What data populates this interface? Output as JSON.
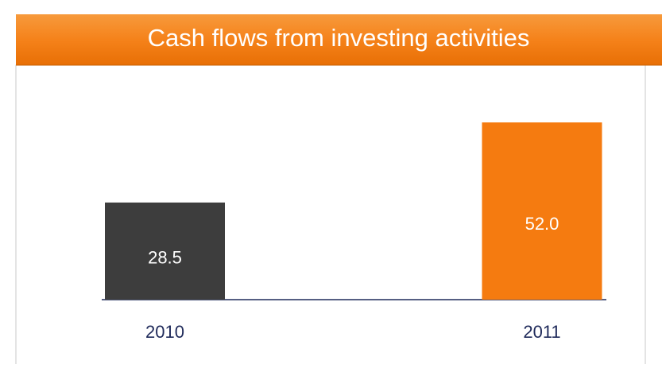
{
  "chart_data": {
    "type": "bar",
    "title": "Cash flows from investing activities",
    "categories": [
      "2010",
      "2011"
    ],
    "values": [
      28.5,
      52.0
    ],
    "value_labels": [
      "28.5",
      "52.0"
    ],
    "colors": [
      "#3d3d3d",
      "#f57b10"
    ]
  }
}
